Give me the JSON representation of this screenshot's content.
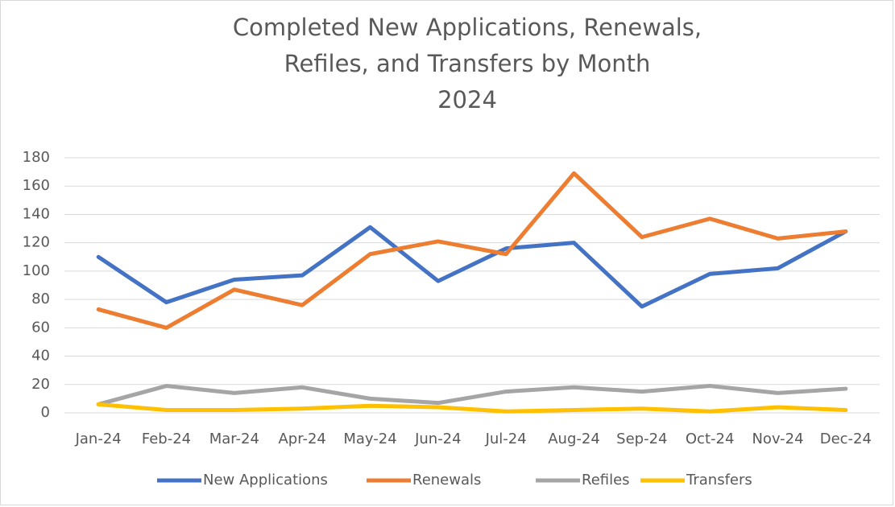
{
  "chart_data": {
    "type": "line",
    "title": [
      "Completed New Applications, Renewals,",
      "Refiles, and Transfers by Month",
      "2024"
    ],
    "categories": [
      "Jan-24",
      "Feb-24",
      "Mar-24",
      "Apr-24",
      "May-24",
      "Jun-24",
      "Jul-24",
      "Aug-24",
      "Sep-24",
      "Oct-24",
      "Nov-24",
      "Dec-24"
    ],
    "series": [
      {
        "name": "New Applications",
        "color": "#4472c4",
        "values": [
          110,
          78,
          94,
          97,
          131,
          93,
          116,
          120,
          75,
          98,
          102,
          128
        ]
      },
      {
        "name": "Renewals",
        "color": "#ed7d31",
        "values": [
          73,
          60,
          87,
          76,
          112,
          121,
          112,
          169,
          124,
          137,
          123,
          128
        ]
      },
      {
        "name": "Refiles",
        "color": "#a5a5a5",
        "values": [
          6,
          19,
          14,
          18,
          10,
          7,
          15,
          18,
          15,
          19,
          14,
          17
        ]
      },
      {
        "name": "Transfers",
        "color": "#ffc000",
        "values": [
          6,
          2,
          2,
          3,
          5,
          4,
          1,
          2,
          3,
          1,
          4,
          2
        ]
      }
    ],
    "ylim": [
      0,
      180
    ],
    "yticks": [
      0,
      20,
      40,
      60,
      80,
      100,
      120,
      140,
      160,
      180
    ],
    "grid": true,
    "legend": "bottom"
  }
}
